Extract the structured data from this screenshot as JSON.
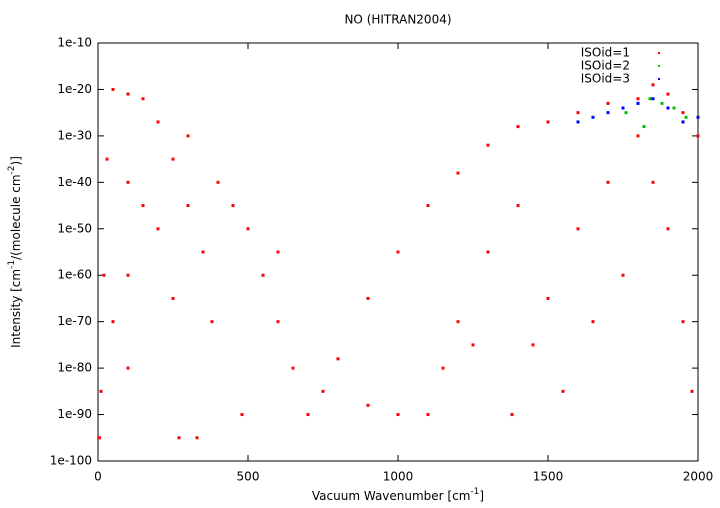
{
  "chart_data": {
    "type": "scatter",
    "title": "NO (HITRAN2004)",
    "xlabel_parts": [
      "Vacuum Wavenumber [cm",
      "-1",
      "]"
    ],
    "ylabel_parts": [
      "Intensity [cm",
      "-1",
      "/(molecule cm",
      "-2",
      ")]"
    ],
    "log_y": true,
    "legend": "top-right",
    "xlim": [
      0,
      2000
    ],
    "xticks": [
      0,
      500,
      1000,
      1500,
      2000
    ],
    "ylim": [
      1e-100,
      1e-10
    ],
    "yticks": [
      {
        "value": 1e-100,
        "label": "1e-100"
      },
      {
        "value": 1e-90,
        "label": "1e-90"
      },
      {
        "value": 1e-80,
        "label": "1e-80"
      },
      {
        "value": 1e-70,
        "label": "1e-70"
      },
      {
        "value": 1e-60,
        "label": "1e-60"
      },
      {
        "value": 1e-50,
        "label": "1e-50"
      },
      {
        "value": 1e-40,
        "label": "1e-40"
      },
      {
        "value": 1e-30,
        "label": "1e-30"
      },
      {
        "value": 1e-20,
        "label": "1e-20"
      },
      {
        "value": 1e-10,
        "label": "1e-10"
      }
    ],
    "series": [
      {
        "name": "ISOid=1",
        "color": "#ff0000",
        "x": [
          10,
          20,
          30,
          50,
          100,
          150,
          200,
          250,
          300,
          350,
          380,
          270,
          250,
          200,
          100,
          100,
          100,
          5,
          400,
          450,
          500,
          550,
          600,
          650,
          700,
          330,
          480,
          750,
          800,
          900,
          1000,
          1100,
          1200,
          1300,
          1400,
          1500,
          1600,
          1700,
          1800,
          1850,
          1900,
          1950,
          2000,
          1100,
          1150,
          1200,
          1300,
          1400,
          1380,
          1450,
          1500,
          1600,
          1700,
          1800,
          1900,
          1950,
          1980,
          1650,
          1750,
          1850,
          1550,
          1250,
          1000,
          900,
          600,
          300,
          150,
          50
        ],
        "values": [
          1e-85,
          1e-60,
          1e-35,
          1e-20,
          1e-21,
          1e-22,
          1e-27,
          1e-35,
          1e-45,
          1e-55,
          1e-70,
          1e-95,
          1e-65,
          1e-50,
          1e-40,
          1e-60,
          1e-80,
          1e-95,
          1e-40,
          1e-45,
          1e-50,
          1e-60,
          1e-70,
          1e-80,
          1e-90,
          1e-95,
          1e-90,
          1e-85,
          1e-78,
          1e-65,
          1e-55,
          1e-45,
          1e-38,
          1e-32,
          1e-28,
          1e-27,
          1e-25,
          1e-23,
          1e-22,
          1e-19,
          1e-21,
          1e-25,
          1e-30,
          1e-90,
          1e-80,
          1e-70,
          1e-55,
          1e-45,
          1e-90,
          1e-75,
          1e-65,
          1e-50,
          1e-40,
          1e-30,
          1e-50,
          1e-70,
          1e-85,
          1e-70,
          1e-60,
          1e-40,
          1e-85,
          1e-75,
          1e-90,
          1e-88,
          1e-55,
          1e-30,
          1e-45,
          1e-70
        ]
      },
      {
        "name": "ISOid=2",
        "color": "#00c000",
        "x": [
          1760,
          1800,
          1840,
          1880,
          1920,
          1960,
          1820
        ],
        "values": [
          1e-25,
          1e-23,
          1e-22,
          1e-23,
          1e-24,
          1e-26,
          1e-28
        ]
      },
      {
        "name": "ISOid=3",
        "color": "#0000ff",
        "x": [
          1600,
          1650,
          1700,
          1750,
          1800,
          1850,
          1900,
          1950,
          2000
        ],
        "values": [
          1e-27,
          1e-26,
          1e-25,
          1e-24,
          1e-23,
          1e-22,
          1e-24,
          1e-27,
          1e-26
        ]
      }
    ]
  }
}
